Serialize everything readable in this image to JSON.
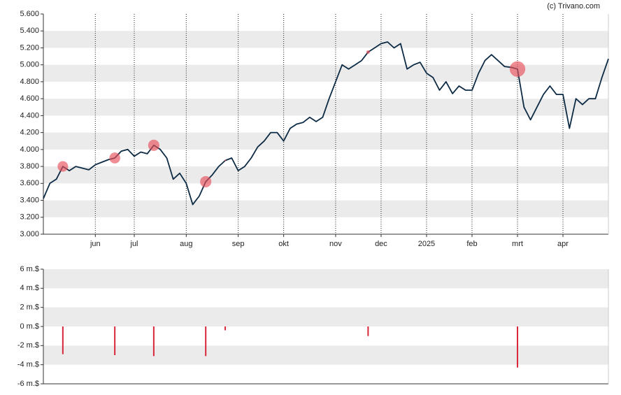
{
  "chart_data": [
    {
      "type": "line",
      "annotation": "(c) Trivano.com",
      "color": "#0d2b45",
      "marker_color": "rgba(232,80,90,0.65)",
      "grid": true,
      "categories": [
        null,
        null,
        null,
        null,
        null,
        null,
        null,
        null,
        "jun",
        null,
        null,
        null,
        null,
        null,
        "jul",
        null,
        null,
        null,
        null,
        null,
        null,
        null,
        "aug",
        null,
        null,
        null,
        null,
        null,
        null,
        null,
        "sep",
        null,
        null,
        null,
        null,
        null,
        null,
        "okt",
        null,
        null,
        null,
        null,
        null,
        null,
        null,
        "nov",
        null,
        null,
        null,
        null,
        null,
        null,
        "dec",
        null,
        null,
        null,
        null,
        null,
        null,
        "2025",
        null,
        null,
        null,
        null,
        null,
        null,
        "feb",
        null,
        null,
        null,
        null,
        null,
        null,
        "mrt",
        null,
        null,
        null,
        null,
        null,
        null,
        "apr",
        null,
        null,
        null,
        null,
        null,
        null,
        null
      ],
      "values": [
        3420,
        3600,
        3650,
        3800,
        3750,
        3800,
        3780,
        3760,
        3820,
        3850,
        3880,
        3900,
        3980,
        4000,
        3920,
        3970,
        3950,
        4050,
        4000,
        3900,
        3650,
        3720,
        3600,
        3350,
        3450,
        3620,
        3700,
        3800,
        3870,
        3900,
        3750,
        3800,
        3900,
        4030,
        4100,
        4200,
        4200,
        4100,
        4250,
        4300,
        4320,
        4380,
        4330,
        4380,
        4600,
        4800,
        5000,
        4950,
        5000,
        5050,
        5150,
        5200,
        5250,
        5270,
        5200,
        5250,
        4950,
        5000,
        5030,
        4900,
        4850,
        4700,
        4800,
        4660,
        4750,
        4700,
        4700,
        4900,
        5050,
        5120,
        5050,
        4980,
        4970,
        4950,
        4500,
        4350,
        4500,
        4650,
        4750,
        4650,
        4650,
        4250,
        4600,
        4530,
        4600,
        4600,
        4850,
        5070
      ],
      "ylim": [
        3000,
        5600
      ],
      "yticks": [
        {
          "value": 3000,
          "label": "3.000"
        },
        {
          "value": 3200,
          "label": "3.200"
        },
        {
          "value": 3400,
          "label": "3.400"
        },
        {
          "value": 3600,
          "label": "3.600"
        },
        {
          "value": 3800,
          "label": "3.800"
        },
        {
          "value": 4000,
          "label": "4.000"
        },
        {
          "value": 4200,
          "label": "4.200"
        },
        {
          "value": 4400,
          "label": "4.400"
        },
        {
          "value": 4600,
          "label": "4.600"
        },
        {
          "value": 4800,
          "label": "4.800"
        },
        {
          "value": 5000,
          "label": "5.000"
        },
        {
          "value": 5200,
          "label": "5.200"
        },
        {
          "value": 5400,
          "label": "5.400"
        },
        {
          "value": 5600,
          "label": "5.600"
        }
      ]
    },
    {
      "type": "bar",
      "color": "#d9263a",
      "grid": true,
      "values": [
        null,
        null,
        null,
        -2.9,
        null,
        null,
        null,
        null,
        null,
        null,
        null,
        -3.0,
        null,
        null,
        null,
        null,
        null,
        -3.1,
        null,
        null,
        null,
        null,
        null,
        null,
        null,
        -3.1,
        null,
        null,
        -0.4,
        null,
        null,
        null,
        null,
        null,
        null,
        null,
        null,
        null,
        null,
        null,
        null,
        null,
        null,
        null,
        null,
        null,
        null,
        null,
        null,
        null,
        -1.0,
        null,
        null,
        null,
        null,
        null,
        null,
        null,
        null,
        null,
        null,
        null,
        null,
        null,
        null,
        null,
        null,
        null,
        null,
        null,
        null,
        null,
        null,
        -4.3,
        null,
        null,
        null,
        null,
        null,
        null,
        null,
        null,
        null,
        null,
        null,
        null,
        null,
        null
      ],
      "ylim": [
        -6,
        6
      ],
      "yticks": [
        {
          "value": -6,
          "label": "-6 m.$"
        },
        {
          "value": -4,
          "label": "-4 m.$"
        },
        {
          "value": -2,
          "label": "-2 m.$"
        },
        {
          "value": 0,
          "label": "0 m.$"
        },
        {
          "value": 2,
          "label": "2 m.$"
        },
        {
          "value": 4,
          "label": "4 m.$"
        },
        {
          "value": 6,
          "label": "6 m.$"
        }
      ]
    }
  ]
}
